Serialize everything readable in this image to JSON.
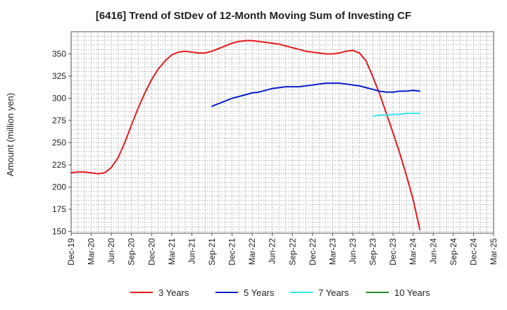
{
  "chart_data": {
    "type": "line",
    "title": "[6416]  Trend of StDev of 12-Month Moving Sum of Investing CF",
    "xlabel": "",
    "ylabel": "Amount (million yen)",
    "ylim": [
      148,
      375
    ],
    "y_ticks": [
      150,
      175,
      200,
      225,
      250,
      275,
      300,
      325,
      350
    ],
    "x_ticks": [
      "Dec-19",
      "Mar-20",
      "Jun-20",
      "Sep-20",
      "Dec-20",
      "Mar-21",
      "Jun-21",
      "Sep-21",
      "Dec-21",
      "Mar-22",
      "Jun-22",
      "Sep-22",
      "Dec-22",
      "Mar-23",
      "Jun-23",
      "Sep-23",
      "Dec-23",
      "Mar-24",
      "Jun-24",
      "Sep-24",
      "Dec-24",
      "Mar-25"
    ],
    "grid": true,
    "legend_position": "bottom",
    "series": [
      {
        "name": "3 Years",
        "color": "#e31a1c",
        "values": [
          [
            "Dec-19",
            216
          ],
          [
            "Jan-20",
            217
          ],
          [
            "Feb-20",
            217
          ],
          [
            "Mar-20",
            216
          ],
          [
            "Apr-20",
            215
          ],
          [
            "May-20",
            216
          ],
          [
            "Jun-20",
            222
          ],
          [
            "Jul-20",
            233
          ],
          [
            "Aug-20",
            250
          ],
          [
            "Sep-20",
            270
          ],
          [
            "Oct-20",
            289
          ],
          [
            "Nov-20",
            306
          ],
          [
            "Dec-20",
            321
          ],
          [
            "Jan-21",
            333
          ],
          [
            "Feb-21",
            342
          ],
          [
            "Mar-21",
            349
          ],
          [
            "Apr-21",
            352
          ],
          [
            "May-21",
            353
          ],
          [
            "Jun-21",
            352
          ],
          [
            "Jul-21",
            351
          ],
          [
            "Aug-21",
            351
          ],
          [
            "Sep-21",
            353
          ],
          [
            "Oct-21",
            356
          ],
          [
            "Nov-21",
            359
          ],
          [
            "Dec-21",
            362
          ],
          [
            "Jan-22",
            364
          ],
          [
            "Feb-22",
            365
          ],
          [
            "Mar-22",
            365
          ],
          [
            "Apr-22",
            364
          ],
          [
            "May-22",
            363
          ],
          [
            "Jun-22",
            362
          ],
          [
            "Jul-22",
            361
          ],
          [
            "Aug-22",
            359
          ],
          [
            "Sep-22",
            357
          ],
          [
            "Oct-22",
            355
          ],
          [
            "Nov-22",
            353
          ],
          [
            "Dec-22",
            352
          ],
          [
            "Jan-23",
            351
          ],
          [
            "Feb-23",
            350
          ],
          [
            "Mar-23",
            350
          ],
          [
            "Apr-23",
            351
          ],
          [
            "May-23",
            353
          ],
          [
            "Jun-23",
            354
          ],
          [
            "Jul-23",
            351
          ],
          [
            "Aug-23",
            342
          ],
          [
            "Sep-23",
            324
          ],
          [
            "Oct-23",
            305
          ],
          [
            "Nov-23",
            283
          ],
          [
            "Dec-23",
            261
          ],
          [
            "Jan-24",
            238
          ],
          [
            "Feb-24",
            213
          ],
          [
            "Mar-24",
            186
          ],
          [
            "Apr-24",
            152
          ]
        ]
      },
      {
        "name": "5 Years",
        "color": "#0a1fcc",
        "values": [
          [
            "Sep-21",
            291
          ],
          [
            "Oct-21",
            294
          ],
          [
            "Nov-21",
            297
          ],
          [
            "Dec-21",
            300
          ],
          [
            "Jan-22",
            302
          ],
          [
            "Feb-22",
            304
          ],
          [
            "Mar-22",
            306
          ],
          [
            "Apr-22",
            307
          ],
          [
            "May-22",
            309
          ],
          [
            "Jun-22",
            311
          ],
          [
            "Jul-22",
            312
          ],
          [
            "Aug-22",
            313
          ],
          [
            "Sep-22",
            313
          ],
          [
            "Oct-22",
            313
          ],
          [
            "Nov-22",
            314
          ],
          [
            "Dec-22",
            315
          ],
          [
            "Jan-23",
            316
          ],
          [
            "Feb-23",
            317
          ],
          [
            "Mar-23",
            317
          ],
          [
            "Apr-23",
            317
          ],
          [
            "May-23",
            316
          ],
          [
            "Jun-23",
            315
          ],
          [
            "Jul-23",
            314
          ],
          [
            "Aug-23",
            312
          ],
          [
            "Sep-23",
            310
          ],
          [
            "Oct-23",
            308
          ],
          [
            "Nov-23",
            307
          ],
          [
            "Dec-23",
            307
          ],
          [
            "Jan-24",
            308
          ],
          [
            "Feb-24",
            308
          ],
          [
            "Mar-24",
            309
          ],
          [
            "Apr-24",
            308
          ]
        ]
      },
      {
        "name": "7 Years",
        "color": "#33e8f0",
        "values": [
          [
            "Sep-23",
            280
          ],
          [
            "Oct-23",
            281
          ],
          [
            "Nov-23",
            281
          ],
          [
            "Dec-23",
            282
          ],
          [
            "Jan-24",
            282
          ],
          [
            "Feb-24",
            283
          ],
          [
            "Mar-24",
            283
          ],
          [
            "Apr-24",
            283
          ]
        ]
      },
      {
        "name": "10 Years",
        "color": "#228b22",
        "values": []
      }
    ]
  }
}
